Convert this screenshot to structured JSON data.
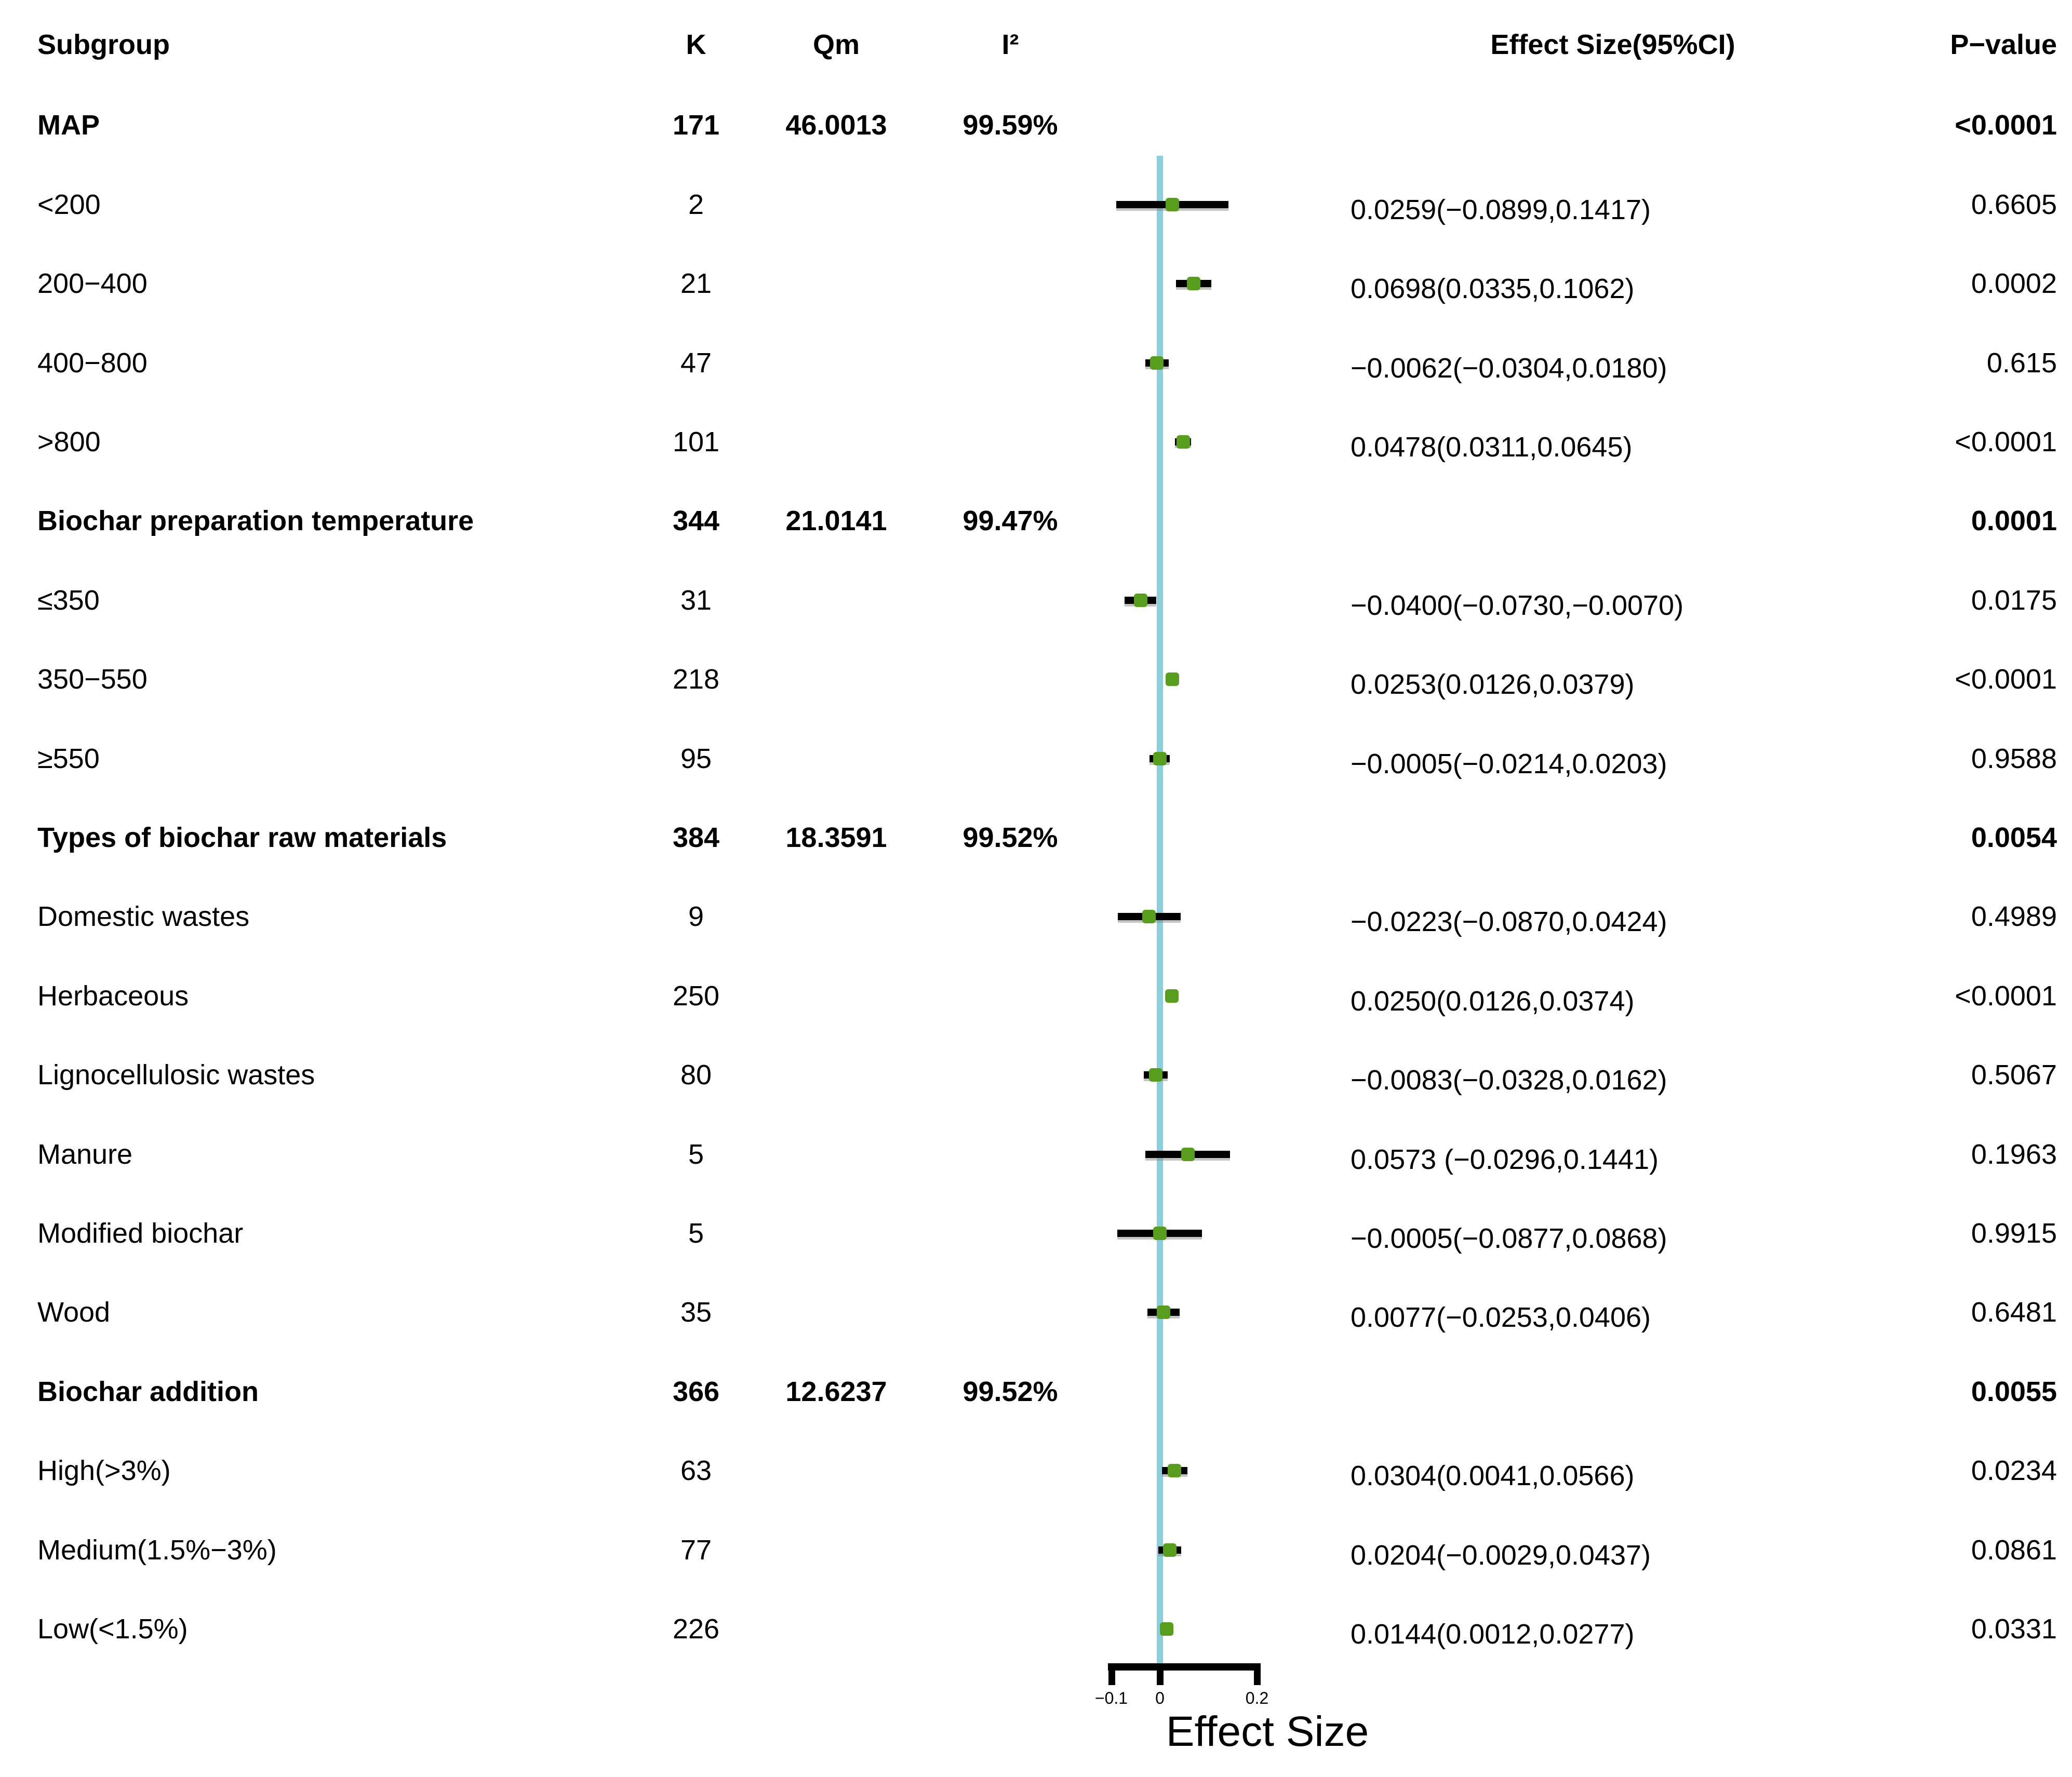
{
  "columns": {
    "subgroup": "Subgroup",
    "k": "K",
    "qm": "Qm",
    "i2": "I²",
    "effect": "Effect Size(95%CI)",
    "p": "P−value"
  },
  "axis": {
    "xlabel": "Effect Size",
    "ticks": [
      {
        "value": -0.1,
        "label": "−0.1"
      },
      {
        "value": 0,
        "label": "0"
      },
      {
        "value": 0.2,
        "label": "0.2"
      }
    ]
  },
  "colors": {
    "reference_line": "#8ccfdc",
    "marker": "#579e1d",
    "ci_bar": "#000000",
    "text": "#000000"
  },
  "chart_data": {
    "type": "forest",
    "xlabel": "Effect Size",
    "xlim": [
      -0.1,
      0.2
    ],
    "reference_line_x": 0,
    "rows": [
      {
        "subgroup": "MAP",
        "k": "171",
        "qm": "46.0013",
        "i2": "99.59%",
        "effect_text": "",
        "p": "<0.0001",
        "bold": true,
        "estimate": null,
        "ci_low": null,
        "ci_high": null
      },
      {
        "subgroup": "<200",
        "k": "2",
        "qm": "",
        "i2": "",
        "effect_text": "0.0259(−0.0899,0.1417)",
        "p": "0.6605",
        "bold": false,
        "estimate": 0.0259,
        "ci_low": -0.0899,
        "ci_high": 0.1417
      },
      {
        "subgroup": "200−400",
        "k": "21",
        "qm": "",
        "i2": "",
        "effect_text": "0.0698(0.0335,0.1062)",
        "p": "0.0002",
        "bold": false,
        "estimate": 0.0698,
        "ci_low": 0.0335,
        "ci_high": 0.1062
      },
      {
        "subgroup": "400−800",
        "k": "47",
        "qm": "",
        "i2": "",
        "effect_text": "−0.0062(−0.0304,0.0180)",
        "p": "0.615",
        "bold": false,
        "estimate": -0.0062,
        "ci_low": -0.0304,
        "ci_high": 0.018
      },
      {
        "subgroup": ">800",
        "k": "101",
        "qm": "",
        "i2": "",
        "effect_text": "0.0478(0.0311,0.0645)",
        "p": "<0.0001",
        "bold": false,
        "estimate": 0.0478,
        "ci_low": 0.0311,
        "ci_high": 0.0645
      },
      {
        "subgroup": "Biochar preparation temperature",
        "k": "344",
        "qm": "21.0141",
        "i2": "99.47%",
        "effect_text": "",
        "p": "0.0001",
        "bold": true,
        "estimate": null,
        "ci_low": null,
        "ci_high": null
      },
      {
        "subgroup": "≤350",
        "k": "31",
        "qm": "",
        "i2": "",
        "effect_text": "−0.0400(−0.0730,−0.0070)",
        "p": "0.0175",
        "bold": false,
        "estimate": -0.04,
        "ci_low": -0.073,
        "ci_high": -0.007
      },
      {
        "subgroup": "350−550",
        "k": "218",
        "qm": "",
        "i2": "",
        "effect_text": "0.0253(0.0126,0.0379)",
        "p": "<0.0001",
        "bold": false,
        "estimate": 0.0253,
        "ci_low": 0.0126,
        "ci_high": 0.0379
      },
      {
        "subgroup": "≥550",
        "k": "95",
        "qm": "",
        "i2": "",
        "effect_text": "−0.0005(−0.0214,0.0203)",
        "p": "0.9588",
        "bold": false,
        "estimate": -0.0005,
        "ci_low": -0.0214,
        "ci_high": 0.0203
      },
      {
        "subgroup": "Types of biochar raw materials",
        "k": "384",
        "qm": "18.3591",
        "i2": "99.52%",
        "effect_text": "",
        "p": "0.0054",
        "bold": true,
        "estimate": null,
        "ci_low": null,
        "ci_high": null
      },
      {
        "subgroup": "Domestic wastes",
        "k": "9",
        "qm": "",
        "i2": "",
        "effect_text": "−0.0223(−0.0870,0.0424)",
        "p": "0.4989",
        "bold": false,
        "estimate": -0.0223,
        "ci_low": -0.087,
        "ci_high": 0.0424
      },
      {
        "subgroup": "Herbaceous",
        "k": "250",
        "qm": "",
        "i2": "",
        "effect_text": "0.0250(0.0126,0.0374)",
        "p": "<0.0001",
        "bold": false,
        "estimate": 0.025,
        "ci_low": 0.0126,
        "ci_high": 0.0374
      },
      {
        "subgroup": "Lignocellulosic wastes",
        "k": "80",
        "qm": "",
        "i2": "",
        "effect_text": "−0.0083(−0.0328,0.0162)",
        "p": "0.5067",
        "bold": false,
        "estimate": -0.0083,
        "ci_low": -0.0328,
        "ci_high": 0.0162
      },
      {
        "subgroup": "Manure",
        "k": "5",
        "qm": "",
        "i2": "",
        "effect_text": "0.0573 (−0.0296,0.1441)",
        "p": "0.1963",
        "bold": false,
        "estimate": 0.0573,
        "ci_low": -0.0296,
        "ci_high": 0.1441
      },
      {
        "subgroup": "Modified biochar",
        "k": "5",
        "qm": "",
        "i2": "",
        "effect_text": "−0.0005(−0.0877,0.0868)",
        "p": "0.9915",
        "bold": false,
        "estimate": -0.0005,
        "ci_low": -0.0877,
        "ci_high": 0.0868
      },
      {
        "subgroup": "Wood",
        "k": "35",
        "qm": "",
        "i2": "",
        "effect_text": "0.0077(−0.0253,0.0406)",
        "p": "0.6481",
        "bold": false,
        "estimate": 0.0077,
        "ci_low": -0.0253,
        "ci_high": 0.0406
      },
      {
        "subgroup": "Biochar addition",
        "k": "366",
        "qm": "12.6237",
        "i2": "99.52%",
        "effect_text": "",
        "p": "0.0055",
        "bold": true,
        "estimate": null,
        "ci_low": null,
        "ci_high": null
      },
      {
        "subgroup": "High(>3%)",
        "k": "63",
        "qm": "",
        "i2": "",
        "effect_text": "0.0304(0.0041,0.0566)",
        "p": "0.0234",
        "bold": false,
        "estimate": 0.0304,
        "ci_low": 0.0041,
        "ci_high": 0.0566
      },
      {
        "subgroup": "Medium(1.5%−3%)",
        "k": "77",
        "qm": "",
        "i2": "",
        "effect_text": "0.0204(−0.0029,0.0437)",
        "p": "0.0861",
        "bold": false,
        "estimate": 0.0204,
        "ci_low": -0.0029,
        "ci_high": 0.0437
      },
      {
        "subgroup": "Low(<1.5%)",
        "k": "226",
        "qm": "",
        "i2": "",
        "effect_text": "0.0144(0.0012,0.0277)",
        "p": "0.0331",
        "bold": false,
        "estimate": 0.0144,
        "ci_low": 0.0012,
        "ci_high": 0.0277
      }
    ]
  }
}
